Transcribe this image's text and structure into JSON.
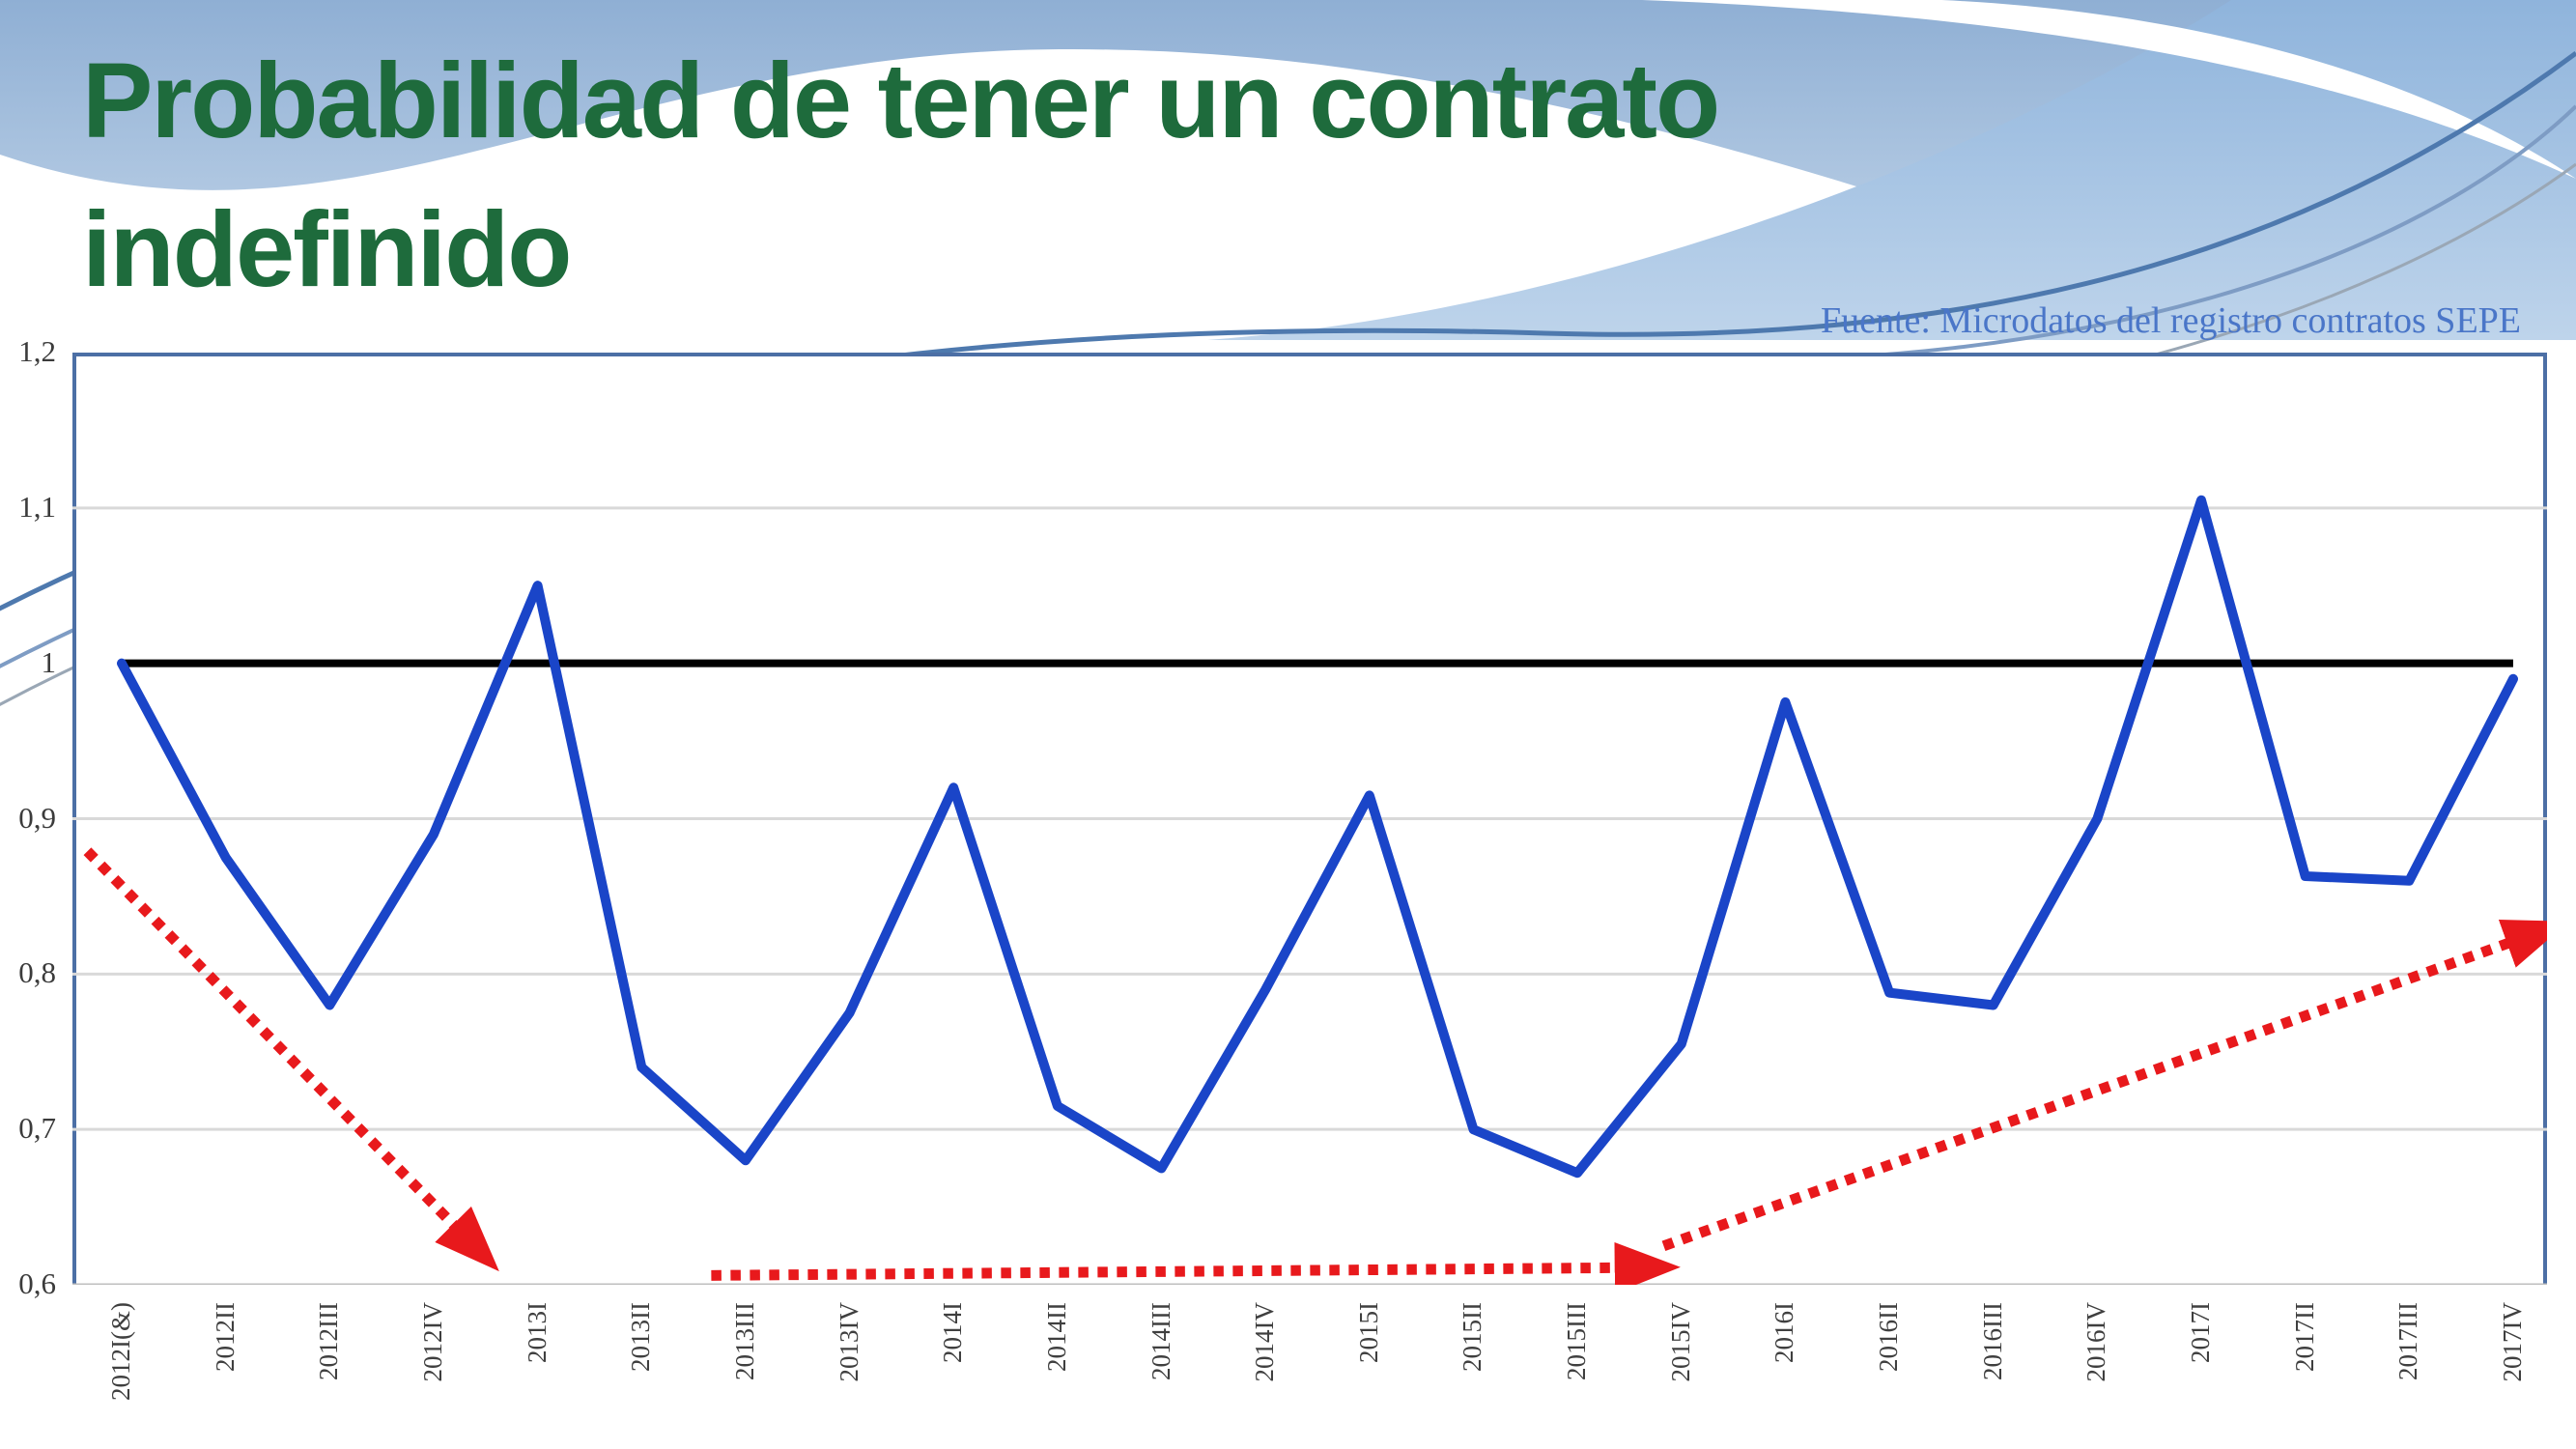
{
  "slide": {
    "title_line1": "Probabilidad de tener un contrato",
    "title_line2": "indefinido",
    "source_note": "Fuente: Microdatos del registro contratos SEPE"
  },
  "chart_data": {
    "type": "line",
    "categories": [
      "2012I(&)",
      "2012II",
      "2012III",
      "2012IV",
      "2013I",
      "2013II",
      "2013III",
      "2013IV",
      "2014I",
      "2014II",
      "2014III",
      "2014IV",
      "2015I",
      "2015II",
      "2015III",
      "2015IV",
      "2016I",
      "2016II",
      "2016III",
      "2016IV",
      "2017I",
      "2017II",
      "2017III",
      "2017IV"
    ],
    "series": [
      {
        "values": [
          1.0,
          0.875,
          0.78,
          0.89,
          1.05,
          0.74,
          0.68,
          0.775,
          0.92,
          0.715,
          0.675,
          0.79,
          0.915,
          0.7,
          0.672,
          0.755,
          0.975,
          0.788,
          0.78,
          0.9,
          1.105,
          0.863,
          0.86,
          0.99
        ]
      }
    ],
    "reference_line": {
      "value": 1.0
    },
    "ylim": [
      0.6,
      1.2
    ],
    "yticks": [
      {
        "label": "1,2",
        "value": 1.2
      },
      {
        "label": "1,1",
        "value": 1.1
      },
      {
        "label": "1",
        "value": 1.0
      },
      {
        "label": "0,9",
        "value": 0.9
      },
      {
        "label": "0,8",
        "value": 0.8
      },
      {
        "label": "0,7",
        "value": 0.7
      },
      {
        "label": "0,6",
        "value": 0.6
      }
    ],
    "grid_values": [
      1.1,
      0.9,
      0.8,
      0.7
    ],
    "baseline_value": 0.6,
    "grid": true,
    "legend": "none",
    "annotations": {
      "arrows": [
        {
          "x1": -0.33,
          "y1": 0.879,
          "x2": 3.23,
          "y2": 0.636
        },
        {
          "x1": 5.67,
          "y1": 0.606,
          "x2": 14.42,
          "y2": 0.611
        },
        {
          "x1": 14.83,
          "y1": 0.625,
          "x2": 23.0,
          "y2": 0.821
        }
      ]
    },
    "colors": {
      "series": "#1A45C8",
      "reference": "#000000",
      "arrows": "#E8191C",
      "grid": "#D9D9D9",
      "baseline": "#BFBFBF",
      "plot_border": "#4C6FA5",
      "axis_labels": "#3B3B3B"
    }
  },
  "theme": {
    "title_color": "#1E6B3C",
    "source_color": "#4A76C8"
  }
}
